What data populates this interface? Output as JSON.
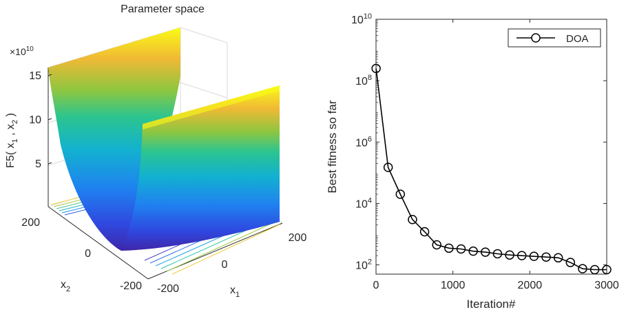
{
  "chart_data": [
    {
      "type": "surface",
      "title": "Parameter space",
      "xlabel": "x",
      "xlabel_sub": "1",
      "ylabel": "x",
      "ylabel_sub": "2",
      "zlabel": "F5( x",
      "zlabel_sub1": "1",
      "zlabel_mid": " , x",
      "zlabel_sub2": "2",
      "zlabel_end": " )",
      "z_exponent_base": "×10",
      "z_exponent_power": "10",
      "x_ticks": [
        "-200",
        "0",
        "200"
      ],
      "y_ticks": [
        "-200",
        "0",
        "200"
      ],
      "z_ticks": [
        "5",
        "10",
        "15"
      ],
      "xlim": [
        -200,
        200
      ],
      "ylim": [
        -200,
        200
      ],
      "zlim": [
        0,
        16
      ],
      "colormap": [
        "#3e26a8",
        "#2f61f1",
        "#1d94ea",
        "#14b5c8",
        "#2fc88c",
        "#9cc63c",
        "#f0b935",
        "#f9fb15"
      ],
      "grid": true
    },
    {
      "type": "line",
      "xlabel": "Iteration#",
      "ylabel": "Best fitness so far",
      "y_scale": "log",
      "xlim": [
        0,
        3000
      ],
      "ylim": [
        50,
        10000000000
      ],
      "x_ticks": [
        "0",
        "1000",
        "2000",
        "3000"
      ],
      "y_ticks": [
        {
          "base": "10",
          "power": "2",
          "value": 100
        },
        {
          "base": "10",
          "power": "4",
          "value": 10000
        },
        {
          "base": "10",
          "power": "6",
          "value": 1000000
        },
        {
          "base": "10",
          "power": "8",
          "value": 100000000
        },
        {
          "base": "10",
          "power": "10",
          "value": 10000000000
        }
      ],
      "legend_position": "top-right",
      "series": [
        {
          "name": "DOA",
          "color": "#000000",
          "marker": "circle",
          "x": [
            1,
            158,
            316,
            474,
            632,
            790,
            948,
            1106,
            1264,
            1422,
            1580,
            1738,
            1896,
            2054,
            2212,
            2370,
            2528,
            2686,
            2844,
            3000
          ],
          "y": [
            250000000,
            150000,
            20000,
            3000,
            1200,
            450,
            350,
            330,
            280,
            260,
            230,
            210,
            200,
            190,
            180,
            170,
            120,
            75,
            70,
            70
          ]
        }
      ]
    }
  ]
}
